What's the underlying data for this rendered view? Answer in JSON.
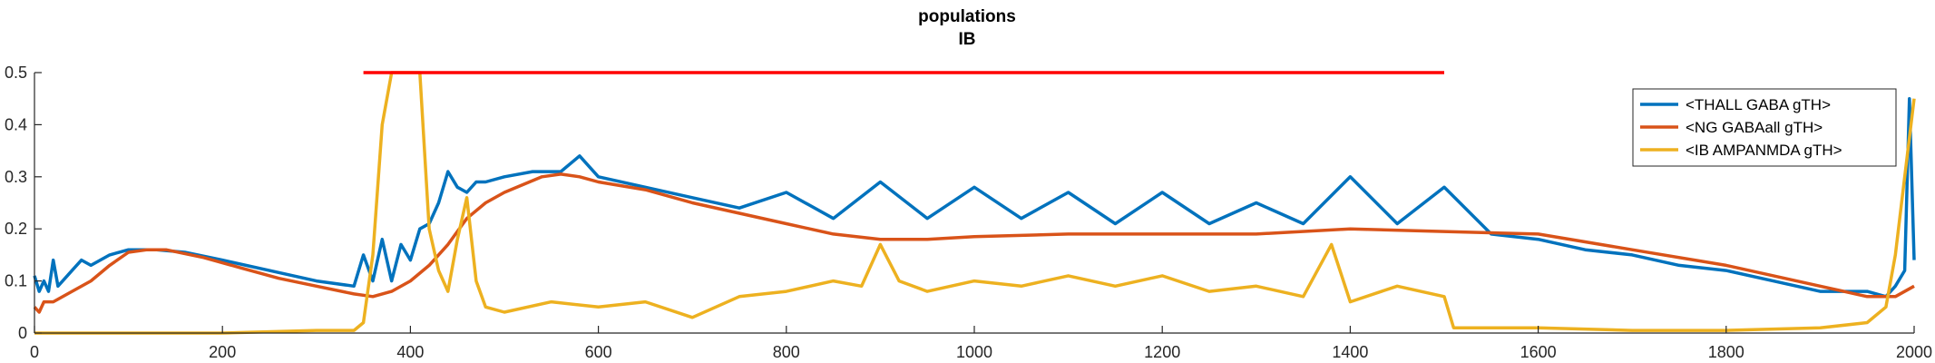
{
  "chart_data": {
    "type": "line",
    "title": "populations",
    "subtitle": "IB",
    "xlabel": "",
    "ylabel": "",
    "xlim": [
      0,
      2000
    ],
    "ylim": [
      0,
      0.5
    ],
    "xticks": [
      0,
      200,
      400,
      600,
      800,
      1000,
      1200,
      1400,
      1600,
      1800,
      2000
    ],
    "yticks": [
      0,
      0.1,
      0.2,
      0.3,
      0.4,
      0.5
    ],
    "ytick_labels": [
      "0",
      "0.1",
      "0.2",
      "0.3",
      "0.4",
      "0.5"
    ],
    "grid": false,
    "legend_position": "top-right",
    "colors": {
      "thall": "#0072BD",
      "ng": "#D95319",
      "ib": "#EDB120",
      "stim": "#FF0000",
      "axes": "#262626"
    },
    "stimulus_bar": {
      "x": [
        350,
        1500
      ],
      "y": 0.5
    },
    "series": [
      {
        "name": "<THALL GABA gTH>",
        "x": [
          0,
          5,
          10,
          15,
          20,
          25,
          30,
          40,
          50,
          60,
          80,
          100,
          130,
          160,
          200,
          250,
          300,
          340,
          350,
          360,
          370,
          380,
          390,
          400,
          410,
          420,
          430,
          440,
          450,
          460,
          470,
          480,
          500,
          530,
          560,
          580,
          600,
          650,
          700,
          750,
          800,
          850,
          900,
          950,
          1000,
          1050,
          1100,
          1150,
          1200,
          1250,
          1300,
          1350,
          1400,
          1450,
          1500,
          1550,
          1600,
          1650,
          1700,
          1750,
          1800,
          1850,
          1900,
          1950,
          1970,
          1980,
          1990,
          1995,
          2000
        ],
        "values": [
          0.11,
          0.08,
          0.1,
          0.08,
          0.14,
          0.09,
          0.1,
          0.12,
          0.14,
          0.13,
          0.15,
          0.16,
          0.16,
          0.155,
          0.14,
          0.12,
          0.1,
          0.09,
          0.15,
          0.1,
          0.18,
          0.1,
          0.17,
          0.14,
          0.2,
          0.21,
          0.25,
          0.31,
          0.28,
          0.27,
          0.29,
          0.29,
          0.3,
          0.31,
          0.31,
          0.34,
          0.3,
          0.28,
          0.26,
          0.24,
          0.27,
          0.22,
          0.29,
          0.22,
          0.28,
          0.22,
          0.27,
          0.21,
          0.27,
          0.21,
          0.25,
          0.21,
          0.3,
          0.21,
          0.28,
          0.19,
          0.18,
          0.16,
          0.15,
          0.13,
          0.12,
          0.1,
          0.08,
          0.08,
          0.07,
          0.09,
          0.12,
          0.45,
          0.14
        ]
      },
      {
        "name": "<NG GABAall gTH>",
        "x": [
          0,
          5,
          10,
          20,
          40,
          60,
          80,
          100,
          120,
          140,
          180,
          220,
          260,
          300,
          340,
          360,
          380,
          400,
          420,
          440,
          460,
          480,
          500,
          540,
          560,
          580,
          600,
          650,
          700,
          750,
          800,
          850,
          900,
          950,
          1000,
          1100,
          1200,
          1300,
          1400,
          1500,
          1600,
          1700,
          1800,
          1900,
          1950,
          1980,
          2000
        ],
        "values": [
          0.05,
          0.04,
          0.06,
          0.06,
          0.08,
          0.1,
          0.13,
          0.155,
          0.16,
          0.16,
          0.145,
          0.125,
          0.105,
          0.09,
          0.075,
          0.07,
          0.08,
          0.1,
          0.13,
          0.17,
          0.22,
          0.25,
          0.27,
          0.3,
          0.305,
          0.3,
          0.29,
          0.275,
          0.25,
          0.23,
          0.21,
          0.19,
          0.18,
          0.18,
          0.185,
          0.19,
          0.19,
          0.19,
          0.2,
          0.195,
          0.19,
          0.16,
          0.13,
          0.09,
          0.07,
          0.07,
          0.09
        ]
      },
      {
        "name": "<IB AMPANMDA gTH>",
        "x": [
          0,
          100,
          200,
          300,
          340,
          350,
          360,
          370,
          380,
          390,
          400,
          410,
          420,
          430,
          440,
          450,
          460,
          470,
          480,
          500,
          550,
          600,
          650,
          700,
          750,
          800,
          850,
          880,
          900,
          920,
          950,
          1000,
          1050,
          1100,
          1150,
          1200,
          1250,
          1300,
          1350,
          1380,
          1400,
          1450,
          1500,
          1510,
          1600,
          1700,
          1800,
          1900,
          1950,
          1970,
          1980,
          1990,
          2000
        ],
        "values": [
          0,
          0,
          0,
          0.005,
          0.005,
          0.02,
          0.15,
          0.4,
          0.5,
          0.5,
          0.5,
          0.5,
          0.2,
          0.12,
          0.08,
          0.18,
          0.26,
          0.1,
          0.05,
          0.04,
          0.06,
          0.05,
          0.06,
          0.03,
          0.07,
          0.08,
          0.1,
          0.09,
          0.17,
          0.1,
          0.08,
          0.1,
          0.09,
          0.11,
          0.09,
          0.11,
          0.08,
          0.09,
          0.07,
          0.17,
          0.06,
          0.09,
          0.07,
          0.01,
          0.01,
          0.005,
          0.005,
          0.01,
          0.02,
          0.05,
          0.15,
          0.3,
          0.45
        ]
      }
    ]
  }
}
